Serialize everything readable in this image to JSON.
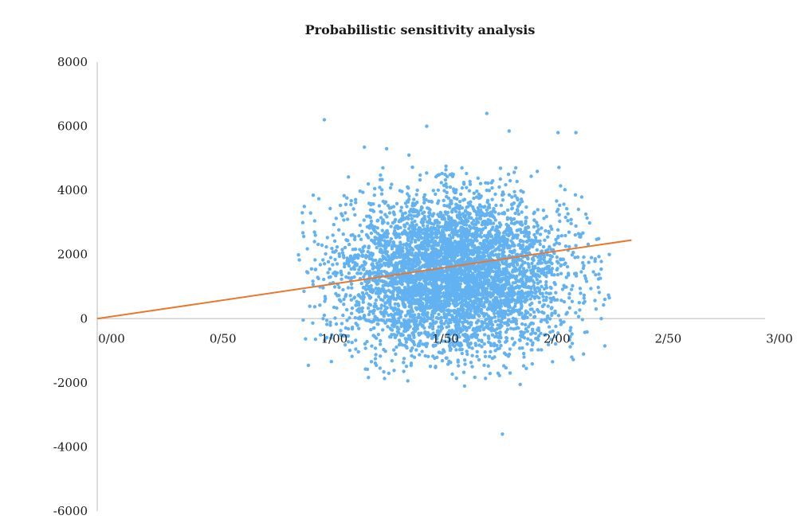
{
  "chart_data": {
    "type": "scatter",
    "title": "Probabilistic sensitivity analysis",
    "xlabel": "",
    "ylabel": "",
    "xlim": [
      0,
      3
    ],
    "ylim": [
      -6000,
      8000
    ],
    "x_ticks": [
      {
        "value": 0.0,
        "label": "0/00"
      },
      {
        "value": 0.5,
        "label": "0/50"
      },
      {
        "value": 1.0,
        "label": "1/00"
      },
      {
        "value": 1.5,
        "label": "1/50"
      },
      {
        "value": 2.0,
        "label": "2/00"
      },
      {
        "value": 2.5,
        "label": "2/50"
      },
      {
        "value": 3.0,
        "label": "3/00"
      }
    ],
    "y_ticks": [
      {
        "value": 8000,
        "label": "8000"
      },
      {
        "value": 6000,
        "label": "6000"
      },
      {
        "value": 4000,
        "label": "4000"
      },
      {
        "value": 2000,
        "label": "2000"
      },
      {
        "value": 0,
        "label": "0"
      },
      {
        "value": -2000,
        "label": "-2000"
      },
      {
        "value": -4000,
        "label": "-4000"
      },
      {
        "value": -6000,
        "label": "-6000"
      }
    ],
    "grid": false,
    "legend": "none",
    "scatter_series": {
      "color": "#62b2f2",
      "center": [
        1.6,
        1400
      ],
      "spread": [
        0.25,
        1200
      ],
      "count": 5000,
      "outliers": [
        [
          1.02,
          6200
        ],
        [
          1.75,
          6400
        ],
        [
          1.48,
          6000
        ],
        [
          2.07,
          5800
        ],
        [
          2.15,
          5800
        ],
        [
          1.85,
          5850
        ],
        [
          0.93,
          3500
        ],
        [
          0.97,
          3850
        ],
        [
          1.82,
          -3600
        ],
        [
          1.65,
          -2100
        ],
        [
          1.9,
          -2050
        ],
        [
          2.28,
          -850
        ],
        [
          2.28,
          600
        ],
        [
          2.3,
          650
        ],
        [
          2.3,
          2000
        ],
        [
          1.05,
          -600
        ],
        [
          0.98,
          2600
        ],
        [
          1.2,
          5350
        ],
        [
          1.3,
          5300
        ],
        [
          1.4,
          5100
        ]
      ]
    },
    "threshold_line": {
      "color": "#e8782e",
      "points": [
        [
          0,
          0
        ],
        [
          2.4,
          2450
        ]
      ]
    }
  }
}
